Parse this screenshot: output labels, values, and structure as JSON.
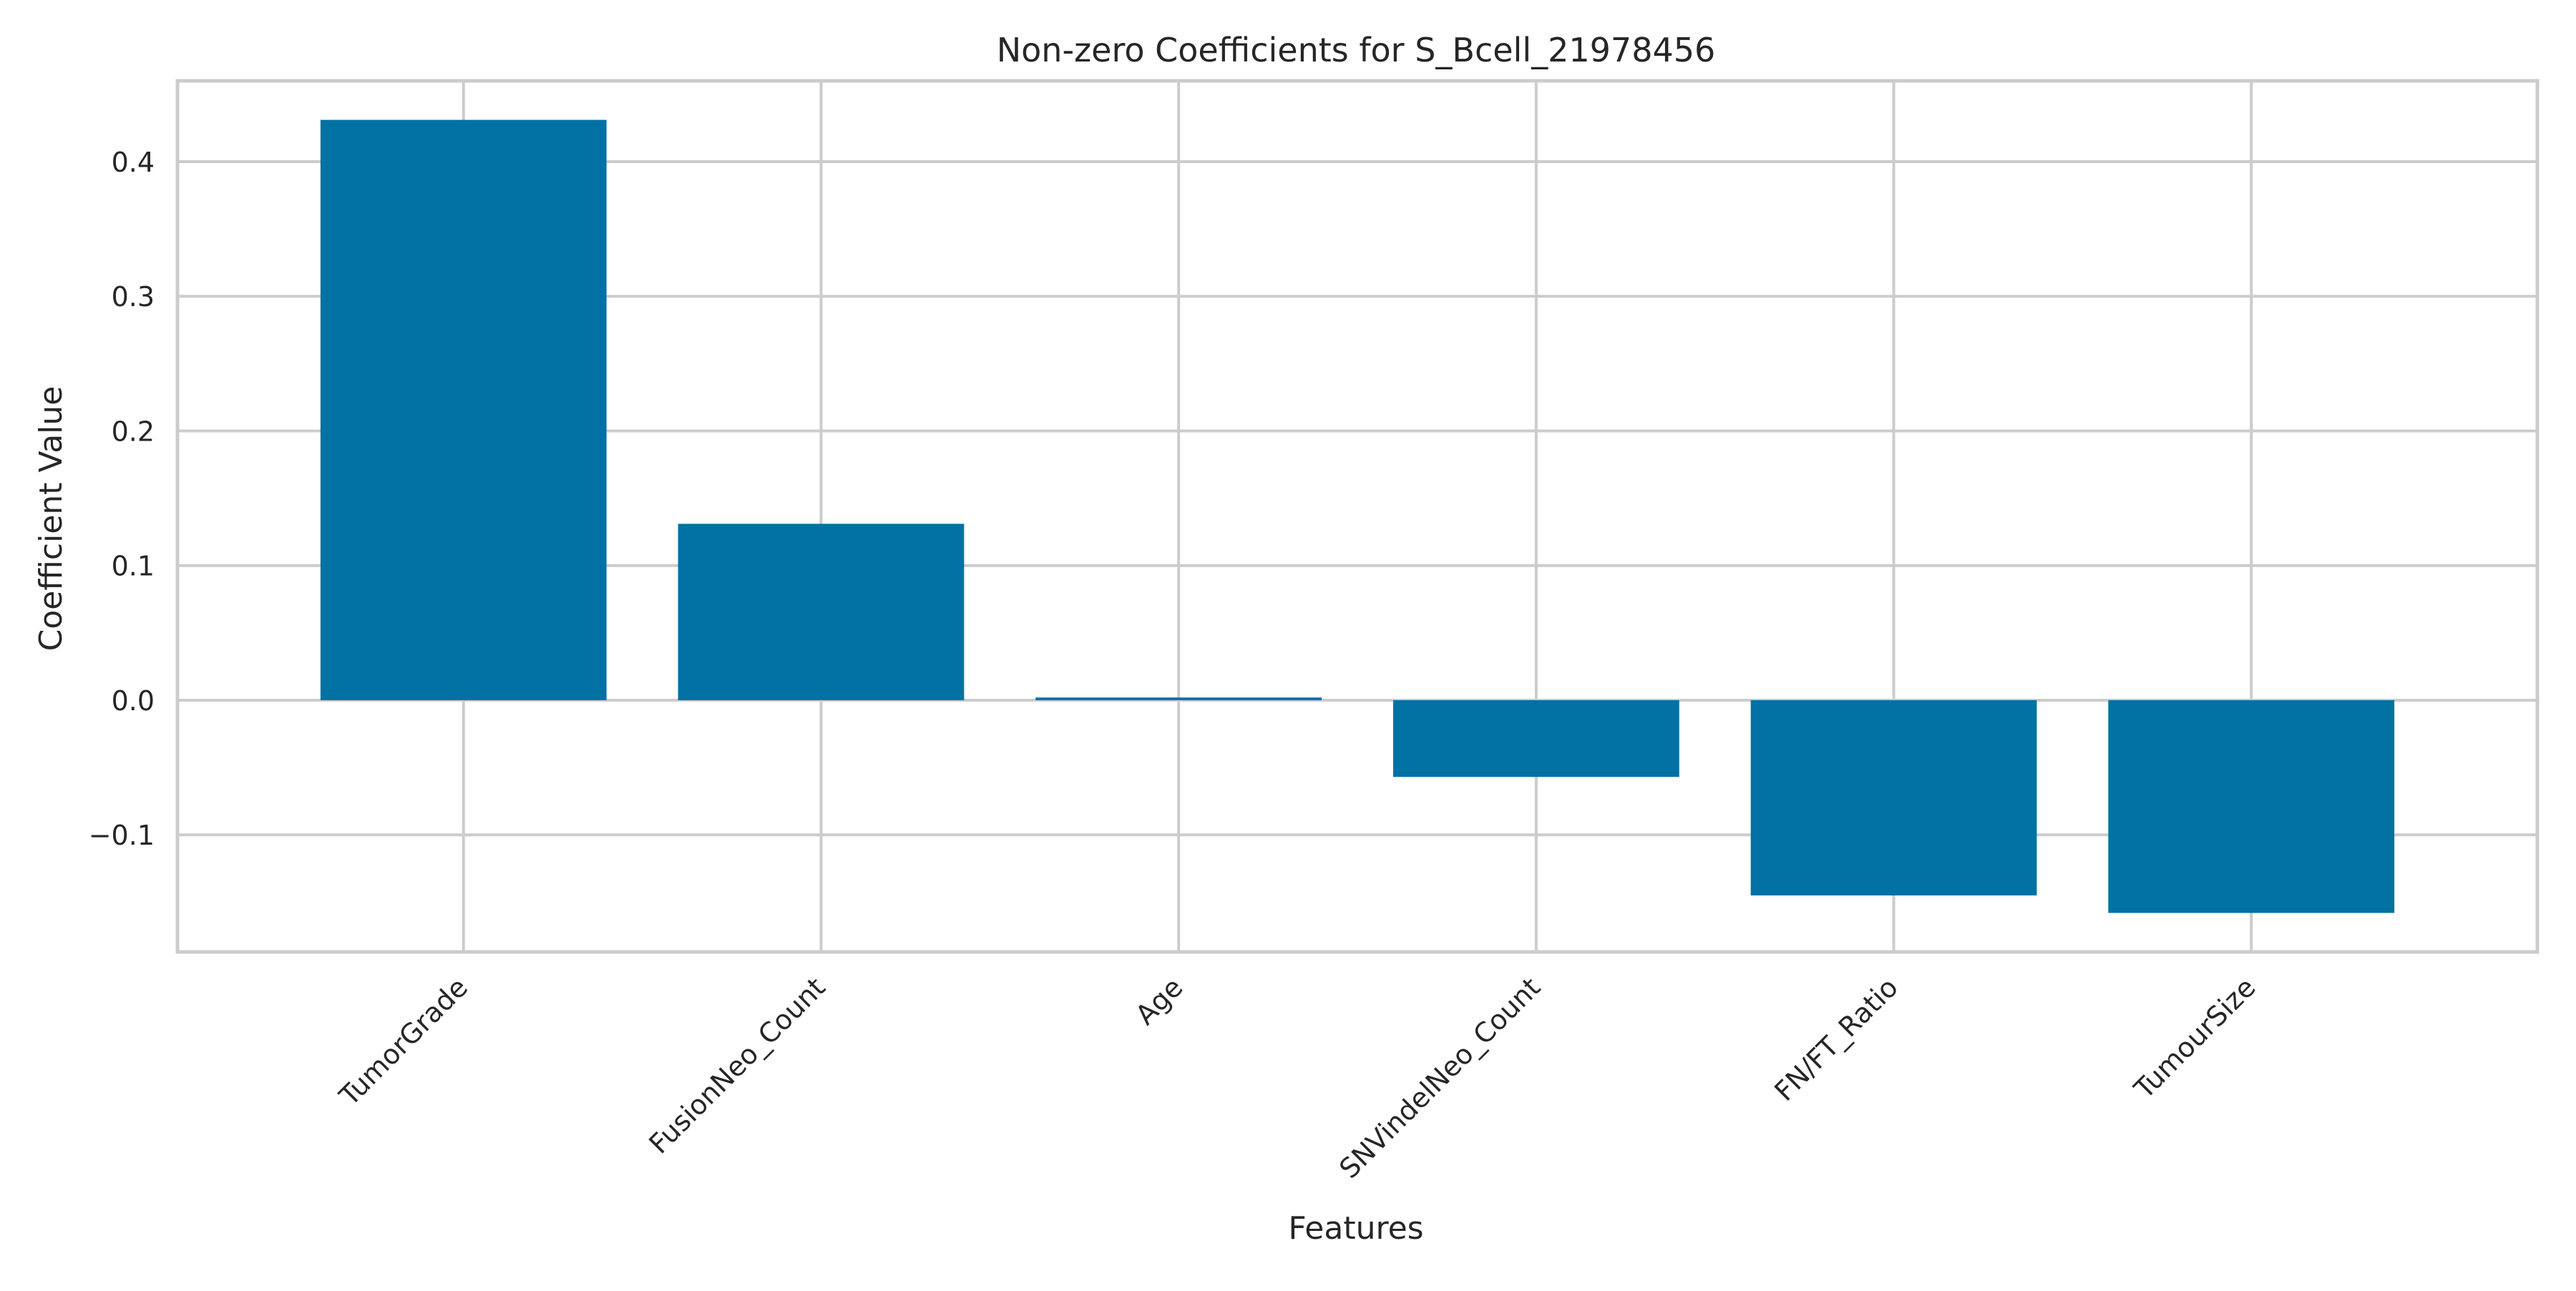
{
  "chart_data": {
    "type": "bar",
    "title": "Non-zero Coefficients for S_Bcell_21978456",
    "xlabel": "Features",
    "ylabel": "Coefficient Value",
    "categories": [
      "TumorGrade",
      "FusionNeo_Count",
      "Age",
      "SNVindelNeo_Count",
      "FN/FT_Ratio",
      "TumourSize"
    ],
    "values": [
      0.431,
      0.131,
      0.002,
      -0.057,
      -0.145,
      -0.158
    ],
    "ylim": [
      -0.187,
      0.46
    ],
    "yticks": [
      -0.1,
      0.0,
      0.1,
      0.2,
      0.3,
      0.4
    ],
    "ytick_labels": [
      "−0.1",
      "0.0",
      "0.1",
      "0.2",
      "0.3",
      "0.4"
    ],
    "grid": true,
    "legend": "none",
    "bar_color": "#0271a4",
    "grid_color": "#cccccc",
    "background_color": "#ffffff"
  }
}
